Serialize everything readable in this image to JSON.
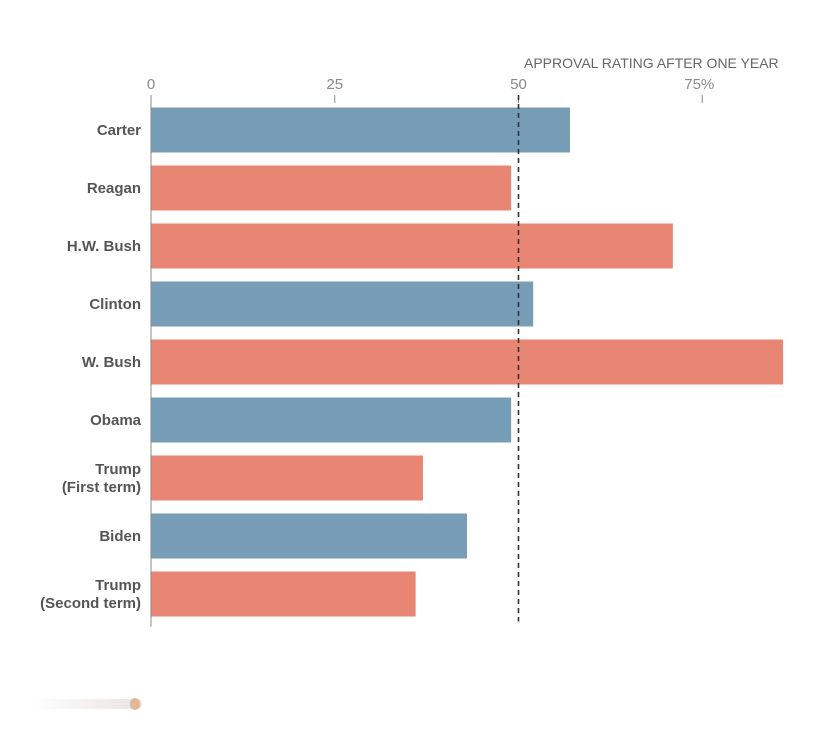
{
  "chart_data": {
    "type": "bar",
    "orientation": "horizontal",
    "title": "APPROVAL RATING AFTER ONE YEAR",
    "xlim": [
      0,
      86
    ],
    "ticks": [
      {
        "value": 0,
        "label": "0"
      },
      {
        "value": 25,
        "label": "25"
      },
      {
        "value": 50,
        "label": "50"
      },
      {
        "value": 75,
        "label": "75%"
      }
    ],
    "reference_line": {
      "value": 50,
      "style": "dashed"
    },
    "colors": {
      "democrat": "#779cb5",
      "republican": "#e98573",
      "axis": "#888888",
      "reference": "#333333"
    },
    "categories": [
      {
        "label": "Carter",
        "value": 57,
        "party": "democrat"
      },
      {
        "label": "Reagan",
        "value": 49,
        "party": "republican"
      },
      {
        "label": "H.W. Bush",
        "value": 71,
        "party": "republican"
      },
      {
        "label": "Clinton",
        "value": 52,
        "party": "democrat"
      },
      {
        "label": "W. Bush",
        "value": 86,
        "party": "republican"
      },
      {
        "label": "Obama",
        "value": 49,
        "party": "democrat"
      },
      {
        "label": "Trump\n(First term)",
        "value": 37,
        "party": "republican"
      },
      {
        "label": "Biden",
        "value": 43,
        "party": "democrat"
      },
      {
        "label": "Trump\n(Second term)",
        "value": 36,
        "party": "republican"
      }
    ]
  }
}
